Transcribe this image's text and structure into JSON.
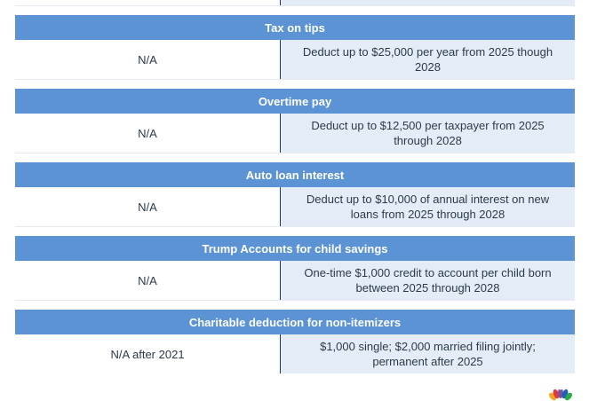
{
  "sections": [
    {
      "title": "Tax on tips",
      "left": "N/A",
      "right": "Deduct up to $25,000 per year from 2025 though 2028"
    },
    {
      "title": "Overtime pay",
      "left": "N/A",
      "right": "Deduct up to $12,500 per taxpayer from 2025 through 2028"
    },
    {
      "title": "Auto loan interest",
      "left": "N/A",
      "right": "Deduct up to $10,000 of annual interest on new loans from 2025 through 2028"
    },
    {
      "title": "Trump Accounts for child savings",
      "left": "N/A",
      "right": "One-time $1,000 credit to account per child born between 2025 through 2028"
    },
    {
      "title": "Charitable deduction for non-itemizers",
      "left": "N/A after 2021",
      "right": "$1,000 single; $2,000 married filing jointly; permanent after 2025"
    }
  ],
  "colors": {
    "header_bg": "#5b93d4",
    "right_cell_bg": "#e4edf7",
    "divider": "#1d3b5a"
  },
  "logo": {
    "icon": "peacock-logo-icon"
  }
}
